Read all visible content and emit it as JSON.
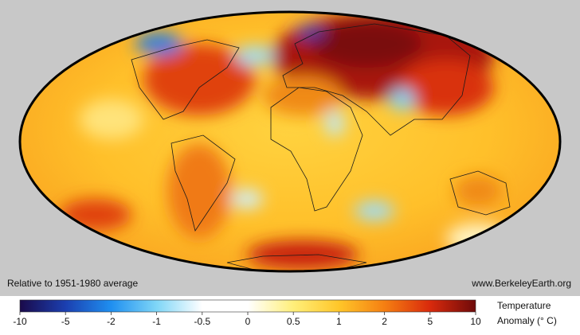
{
  "map": {
    "note": "Relative to 1951-1980 average",
    "source": "www.BerkeleyEarth.org",
    "colorbar": {
      "title_lines": [
        "Temperature",
        "Anomaly (° C)"
      ],
      "ticks": [
        -10,
        -5,
        -2,
        -1,
        -0.5,
        0,
        0.5,
        1,
        2,
        5,
        10
      ],
      "colors": [
        "#1a0a4a",
        "#1b3fb0",
        "#1f8ff0",
        "#7fd6f7",
        "#ffffff",
        "#ffffff",
        "#ffef7a",
        "#ffc629",
        "#f57f12",
        "#d92a0c",
        "#6e0a0a"
      ]
    }
  }
}
